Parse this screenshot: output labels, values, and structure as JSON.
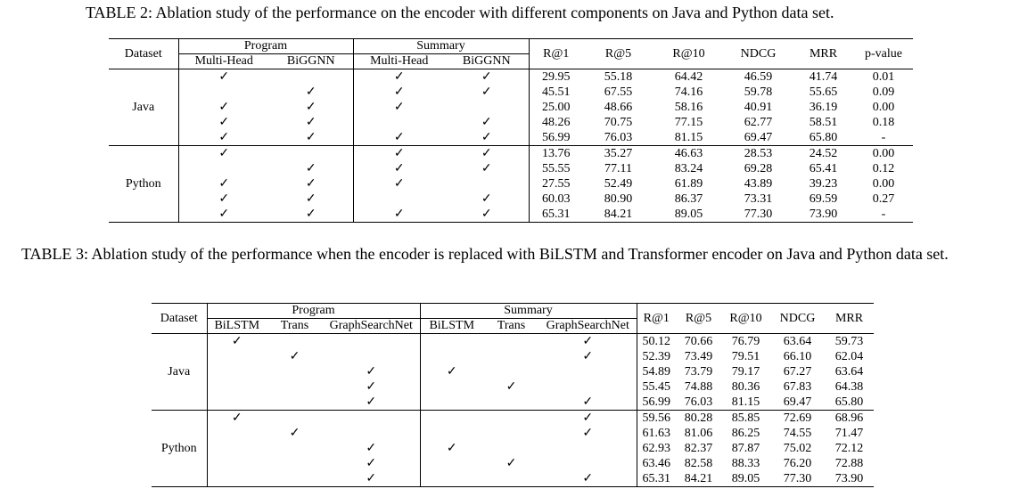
{
  "table2": {
    "caption": "TABLE 2: Ablation study of the performance on the encoder with different components on Java and Python data set.",
    "header": {
      "dataset": "Dataset",
      "program": "Program",
      "summary": "Summary",
      "sub": [
        "Multi-Head",
        "BiGGNN",
        "Multi-Head",
        "BiGGNN"
      ],
      "metrics": [
        "R@1",
        "R@5",
        "R@10",
        "NDCG",
        "MRR",
        "p-value"
      ]
    },
    "groups": [
      {
        "name": "Java",
        "rows": [
          {
            "checks": [
              "✓",
              "",
              "✓",
              "✓"
            ],
            "values": [
              "29.95",
              "55.18",
              "64.42",
              "46.59",
              "41.74",
              "0.01"
            ],
            "bold": false
          },
          {
            "checks": [
              "",
              "✓",
              "✓",
              "✓"
            ],
            "values": [
              "45.51",
              "67.55",
              "74.16",
              "59.78",
              "55.65",
              "0.09"
            ],
            "bold": false
          },
          {
            "checks": [
              "✓",
              "✓",
              "✓",
              ""
            ],
            "values": [
              "25.00",
              "48.66",
              "58.16",
              "40.91",
              "36.19",
              "0.00"
            ],
            "bold": false
          },
          {
            "checks": [
              "✓",
              "✓",
              "",
              "✓"
            ],
            "values": [
              "48.26",
              "70.75",
              "77.15",
              "62.77",
              "58.51",
              "0.18"
            ],
            "bold": false
          },
          {
            "checks": [
              "✓",
              "✓",
              "✓",
              "✓"
            ],
            "values": [
              "56.99",
              "76.03",
              "81.15",
              "69.47",
              "65.80",
              "-"
            ],
            "bold": true
          }
        ]
      },
      {
        "name": "Python",
        "rows": [
          {
            "checks": [
              "✓",
              "",
              "✓",
              "✓"
            ],
            "values": [
              "13.76",
              "35.27",
              "46.63",
              "28.53",
              "24.52",
              "0.00"
            ],
            "bold": false
          },
          {
            "checks": [
              "",
              "✓",
              "✓",
              "✓"
            ],
            "values": [
              "55.55",
              "77.11",
              "83.24",
              "69.28",
              "65.41",
              "0.12"
            ],
            "bold": false
          },
          {
            "checks": [
              "✓",
              "✓",
              "✓",
              ""
            ],
            "values": [
              "27.55",
              "52.49",
              "61.89",
              "43.89",
              "39.23",
              "0.00"
            ],
            "bold": false
          },
          {
            "checks": [
              "✓",
              "✓",
              "",
              "✓"
            ],
            "values": [
              "60.03",
              "80.90",
              "86.37",
              "73.31",
              "69.59",
              "0.27"
            ],
            "bold": false
          },
          {
            "checks": [
              "✓",
              "✓",
              "✓",
              "✓"
            ],
            "values": [
              "65.31",
              "84.21",
              "89.05",
              "77.30",
              "73.90",
              "-"
            ],
            "bold": true
          }
        ]
      }
    ]
  },
  "table3": {
    "caption": "TABLE 3: Ablation study of the performance when the encoder is replaced with BiLSTM and Transformer encoder on Java and Python data set.",
    "header": {
      "dataset": "Dataset",
      "program": "Program",
      "summary": "Summary",
      "sub": [
        "BiLSTM",
        "Trans",
        "GraphSearchNet",
        "BiLSTM",
        "Trans",
        "GraphSearchNet"
      ],
      "metrics": [
        "R@1",
        "R@5",
        "R@10",
        "NDCG",
        "MRR"
      ]
    },
    "groups": [
      {
        "name": "Java",
        "rows": [
          {
            "checks": [
              "✓",
              "",
              "",
              "",
              "",
              "✓"
            ],
            "values": [
              "50.12",
              "70.66",
              "76.79",
              "63.64",
              "59.73"
            ],
            "bold": false
          },
          {
            "checks": [
              "",
              "✓",
              "",
              "",
              "",
              "✓"
            ],
            "values": [
              "52.39",
              "73.49",
              "79.51",
              "66.10",
              "62.04"
            ],
            "bold": false
          },
          {
            "checks": [
              "",
              "",
              "✓",
              "✓",
              "",
              ""
            ],
            "values": [
              "54.89",
              "73.79",
              "79.17",
              "67.27",
              "63.64"
            ],
            "bold": false
          },
          {
            "checks": [
              "",
              "",
              "✓",
              "",
              "✓",
              ""
            ],
            "values": [
              "55.45",
              "74.88",
              "80.36",
              "67.83",
              "64.38"
            ],
            "bold": false
          },
          {
            "checks": [
              "",
              "",
              "✓",
              "",
              "",
              "✓"
            ],
            "values": [
              "56.99",
              "76.03",
              "81.15",
              "69.47",
              "65.80"
            ],
            "bold": true
          }
        ]
      },
      {
        "name": "Python",
        "rows": [
          {
            "checks": [
              "✓",
              "",
              "",
              "",
              "",
              "✓"
            ],
            "values": [
              "59.56",
              "80.28",
              "85.85",
              "72.69",
              "68.96"
            ],
            "bold": false
          },
          {
            "checks": [
              "",
              "✓",
              "",
              "",
              "",
              "✓"
            ],
            "values": [
              "61.63",
              "81.06",
              "86.25",
              "74.55",
              "71.47"
            ],
            "bold": false
          },
          {
            "checks": [
              "",
              "",
              "✓",
              "✓",
              "",
              ""
            ],
            "values": [
              "62.93",
              "82.37",
              "87.87",
              "75.02",
              "72.12"
            ],
            "bold": false
          },
          {
            "checks": [
              "",
              "",
              "✓",
              "",
              "✓",
              ""
            ],
            "values": [
              "63.46",
              "82.58",
              "88.33",
              "76.20",
              "72.88"
            ],
            "bold": false
          },
          {
            "checks": [
              "",
              "",
              "✓",
              "",
              "",
              "✓"
            ],
            "values": [
              "65.31",
              "84.21",
              "89.05",
              "77.30",
              "73.90"
            ],
            "bold": true
          }
        ]
      }
    ]
  }
}
